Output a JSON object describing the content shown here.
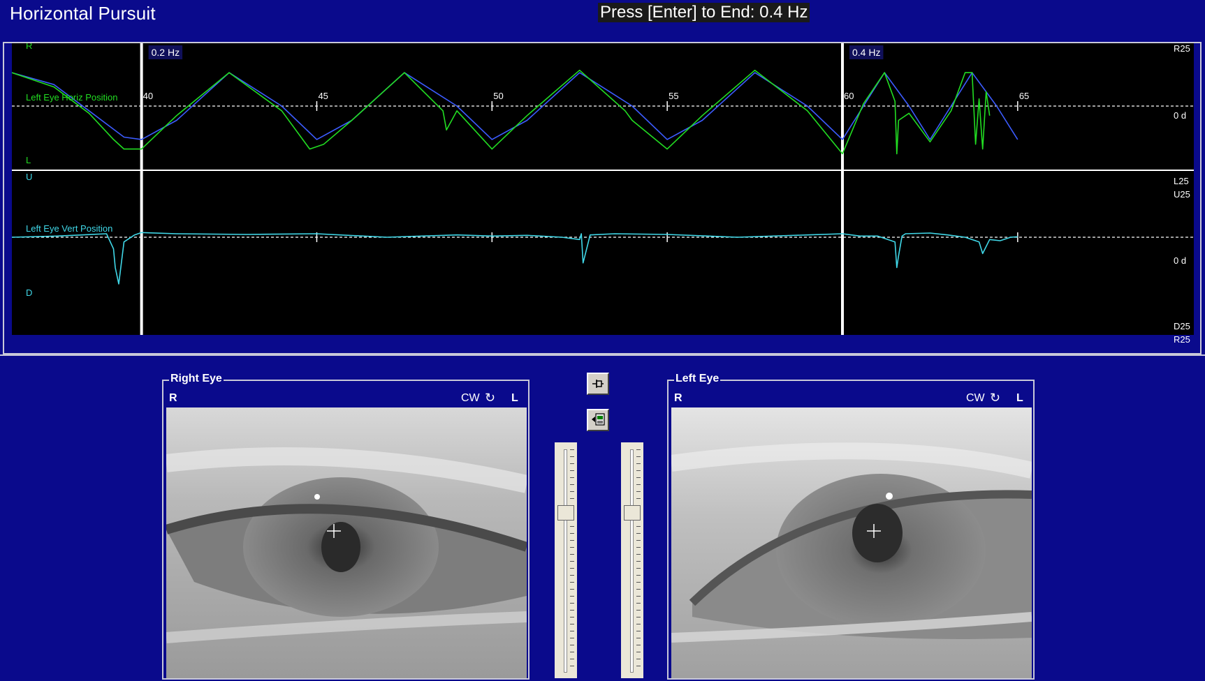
{
  "header": {
    "title": "Horizontal Pursuit",
    "status": "Press [Enter] to End: 0.4 Hz"
  },
  "chart_data": {
    "type": "line",
    "markers": [
      {
        "t": 40,
        "label": "0.2 Hz"
      },
      {
        "t": 60,
        "label": "0.4 Hz"
      }
    ],
    "x_ticks": [
      40,
      45,
      50,
      55,
      60,
      65
    ],
    "x_range": [
      36.3,
      66.0
    ],
    "horizontal": {
      "series_label": "Left Eye Horiz Position",
      "top_label": "R",
      "bottom_label": "L",
      "right_top": "R25",
      "right_mid": "0 d",
      "right_bottom": "L25",
      "ylim": [
        -25,
        25
      ],
      "target_color": "#3c5cff",
      "eye_color": "#22dd22",
      "target": {
        "t": [
          36.3,
          37.5,
          38.5,
          39.5,
          40.0,
          41.0,
          42.5,
          44.0,
          45.0,
          46.0,
          47.5,
          49.0,
          50.0,
          51.0,
          52.5,
          54.0,
          55.0,
          56.0,
          57.5,
          59.0,
          60.0,
          60.6,
          61.2,
          61.9,
          62.5,
          63.1,
          63.7,
          64.4,
          65.0
        ],
        "v": [
          14,
          9,
          -2,
          -13,
          -14,
          -6,
          14,
          0,
          -14,
          -6,
          14,
          0,
          -14,
          -6,
          14,
          0,
          -14,
          -6,
          14,
          0,
          -14,
          0,
          14,
          0,
          -14,
          0,
          14,
          0,
          -14
        ]
      },
      "eye": {
        "t": [
          36.3,
          37.5,
          38.5,
          39.2,
          39.5,
          40.0,
          41.0,
          42.5,
          44.0,
          44.8,
          45.2,
          46.0,
          47.5,
          48.6,
          48.7,
          49.0,
          50.0,
          51.0,
          52.5,
          53.8,
          54.0,
          55.0,
          56.0,
          57.5,
          59.0,
          60.0,
          60.6,
          61.2,
          61.5,
          61.55,
          61.6,
          61.9,
          62.5,
          63.1,
          63.5,
          63.6,
          63.7,
          63.8,
          63.9,
          64.0,
          64.1,
          64.2
        ],
        "v": [
          14,
          8,
          -3,
          -14,
          -18,
          -18,
          -4,
          14,
          -2,
          -18,
          -16,
          -6,
          14,
          -2,
          -10,
          -2,
          -18,
          -4,
          15,
          -2,
          -6,
          -18,
          -4,
          15,
          -2,
          -20,
          1,
          14,
          2,
          -20,
          -6,
          -3,
          -15,
          -2,
          14,
          14,
          14,
          -16,
          3,
          -18,
          6,
          -4
        ]
      }
    },
    "vertical": {
      "series_label": "Left Eye Vert Position",
      "top_label": "U",
      "bottom_label": "D",
      "right_top": "U25",
      "right_mid": "0 d",
      "right_bottom": "D25",
      "extra_label": "R25",
      "ylim": [
        -25,
        25
      ],
      "eye_color": "#40d8e8",
      "eye": {
        "t": [
          36.3,
          37.6,
          39.0,
          39.2,
          39.25,
          39.35,
          39.5,
          39.8,
          40.0,
          41.0,
          43.0,
          45.0,
          47.0,
          48.0,
          49.0,
          50.0,
          51.0,
          52.0,
          52.5,
          52.55,
          52.6,
          52.7,
          52.8,
          53.5,
          55.0,
          57.0,
          59.0,
          60.0,
          60.5,
          61.0,
          61.5,
          61.55,
          61.6,
          61.7,
          61.8,
          62.5,
          63.0,
          63.5,
          63.9,
          64.0,
          64.2,
          64.5,
          64.8,
          65.0
        ],
        "v": [
          0,
          0.5,
          1.5,
          -5,
          -13,
          -20,
          -2,
          1,
          2,
          1.5,
          1.2,
          1.5,
          0,
          0.5,
          1,
          0.5,
          0.8,
          0,
          -1,
          1.5,
          -11,
          -5,
          1,
          1.5,
          1.2,
          0,
          1,
          1.5,
          0.5,
          0.5,
          -2,
          -13,
          -8,
          0.5,
          1.5,
          1.8,
          1,
          0,
          -2,
          -7,
          -1,
          -1.5,
          0,
          0.2
        ]
      }
    }
  },
  "panels": {
    "toolbar": {
      "pin_icon": "pushpin-icon",
      "record_icon": "video-export-icon"
    },
    "right_eye": {
      "title": "Right Eye",
      "r_label": "R",
      "cw_label": "CW",
      "rotate_icon": "rotate-cw-icon",
      "rotate_glyph": "↻",
      "l_label": "L",
      "slider_value": 0.27
    },
    "left_eye": {
      "title": "Left Eye",
      "r_label": "R",
      "cw_label": "CW",
      "rotate_icon": "rotate-cw-icon",
      "rotate_glyph": "↻",
      "l_label": "L",
      "slider_value": 0.27
    }
  }
}
